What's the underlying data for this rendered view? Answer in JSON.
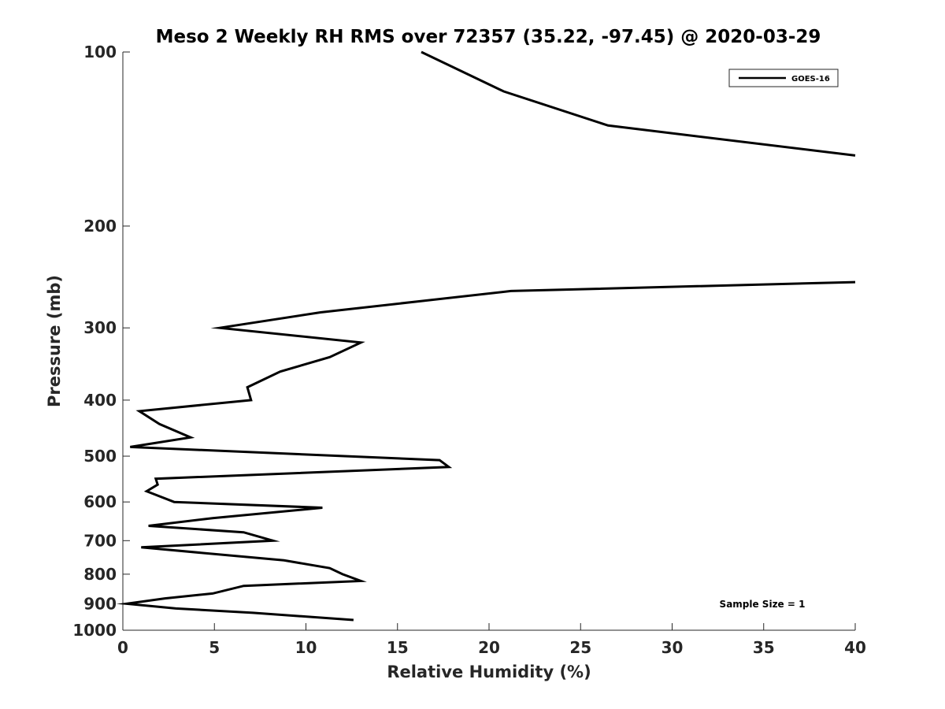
{
  "chart_data": {
    "type": "line",
    "title": "Meso 2 Weekly RH RMS over 72357 (35.22, -97.45) @ 2020-03-29",
    "xlabel": "Relative Humidity (%)",
    "ylabel": "Pressure (mb)",
    "xlim": [
      0,
      40
    ],
    "ylim": [
      100,
      1000
    ],
    "yscale": "log",
    "y_reversed": true,
    "xticks": [
      0,
      5,
      10,
      15,
      20,
      25,
      30,
      35,
      40
    ],
    "yticks": [
      100,
      200,
      300,
      400,
      500,
      600,
      700,
      800,
      900,
      1000
    ],
    "xtick_labels": [
      "0",
      "5",
      "10",
      "15",
      "20",
      "25",
      "30",
      "35",
      "40"
    ],
    "ytick_labels": [
      "100",
      "200",
      "300",
      "400",
      "500",
      "600",
      "700",
      "800",
      "900",
      "1000"
    ],
    "grid": false,
    "legend_position": "top-right",
    "annotation": "Sample Size = 1",
    "series": [
      {
        "name": "GOES-16",
        "color": "#000000",
        "segments": [
          [
            {
              "x": 16.3,
              "p": 100
            },
            {
              "x": 20.8,
              "p": 117
            },
            {
              "x": 26.5,
              "p": 134
            },
            {
              "x": 40.0,
              "p": 151
            }
          ],
          [
            {
              "x": 40.0,
              "p": 250
            },
            {
              "x": 21.2,
              "p": 259
            },
            {
              "x": 10.8,
              "p": 282
            },
            {
              "x": 5.3,
              "p": 300
            },
            {
              "x": 13.0,
              "p": 318
            },
            {
              "x": 11.3,
              "p": 337
            },
            {
              "x": 8.6,
              "p": 357
            },
            {
              "x": 6.8,
              "p": 380
            },
            {
              "x": 7.0,
              "p": 400
            },
            {
              "x": 0.9,
              "p": 418
            },
            {
              "x": 2.0,
              "p": 440
            },
            {
              "x": 3.7,
              "p": 464
            },
            {
              "x": 0.4,
              "p": 482
            },
            {
              "x": 17.3,
              "p": 508
            },
            {
              "x": 17.8,
              "p": 522
            },
            {
              "x": 1.8,
              "p": 547
            },
            {
              "x": 1.9,
              "p": 560
            },
            {
              "x": 1.3,
              "p": 575
            },
            {
              "x": 2.8,
              "p": 600
            },
            {
              "x": 10.9,
              "p": 614
            },
            {
              "x": 4.9,
              "p": 640
            },
            {
              "x": 1.4,
              "p": 660
            },
            {
              "x": 6.6,
              "p": 677
            },
            {
              "x": 8.2,
              "p": 700
            },
            {
              "x": 1.0,
              "p": 719
            },
            {
              "x": 8.8,
              "p": 757
            },
            {
              "x": 11.3,
              "p": 781
            },
            {
              "x": 12.0,
              "p": 800
            },
            {
              "x": 13.0,
              "p": 822
            },
            {
              "x": 6.6,
              "p": 838
            },
            {
              "x": 4.9,
              "p": 864
            },
            {
              "x": 2.3,
              "p": 881
            },
            {
              "x": 0.2,
              "p": 900
            },
            {
              "x": 2.9,
              "p": 917
            },
            {
              "x": 7.1,
              "p": 933
            },
            {
              "x": 12.6,
              "p": 960
            }
          ]
        ]
      }
    ]
  }
}
